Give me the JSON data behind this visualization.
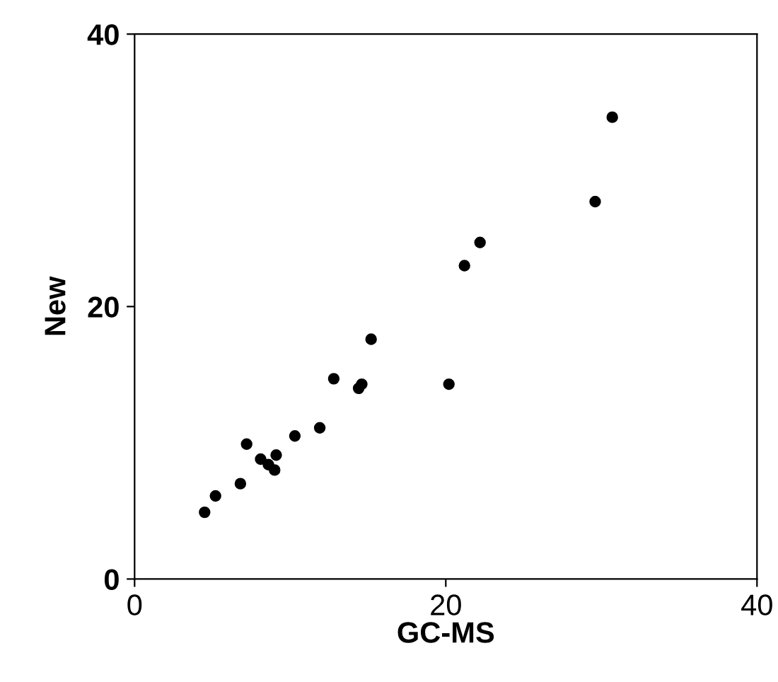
{
  "chart_data": {
    "type": "scatter",
    "xlabel": "GC-MS",
    "ylabel": "New",
    "x": [
      4.5,
      5.2,
      6.8,
      7.2,
      8.1,
      8.6,
      9.0,
      9.1,
      10.3,
      11.9,
      12.8,
      14.4,
      14.6,
      15.2,
      20.2,
      21.2,
      22.2,
      29.6,
      30.7
    ],
    "series": [
      {
        "color": "#000000",
        "values": [
          4.9,
          6.1,
          7.0,
          9.9,
          8.8,
          8.4,
          8.0,
          9.1,
          10.5,
          11.1,
          14.7,
          14.0,
          14.3,
          17.6,
          14.3,
          23.0,
          24.7,
          27.7,
          33.9
        ]
      }
    ],
    "xlim": [
      0,
      40
    ],
    "ylim": [
      0,
      40
    ],
    "xticks": [
      0,
      20,
      40
    ],
    "yticks": [
      0,
      20,
      40
    ],
    "marker": "circle",
    "grid": false,
    "legend": false
  }
}
